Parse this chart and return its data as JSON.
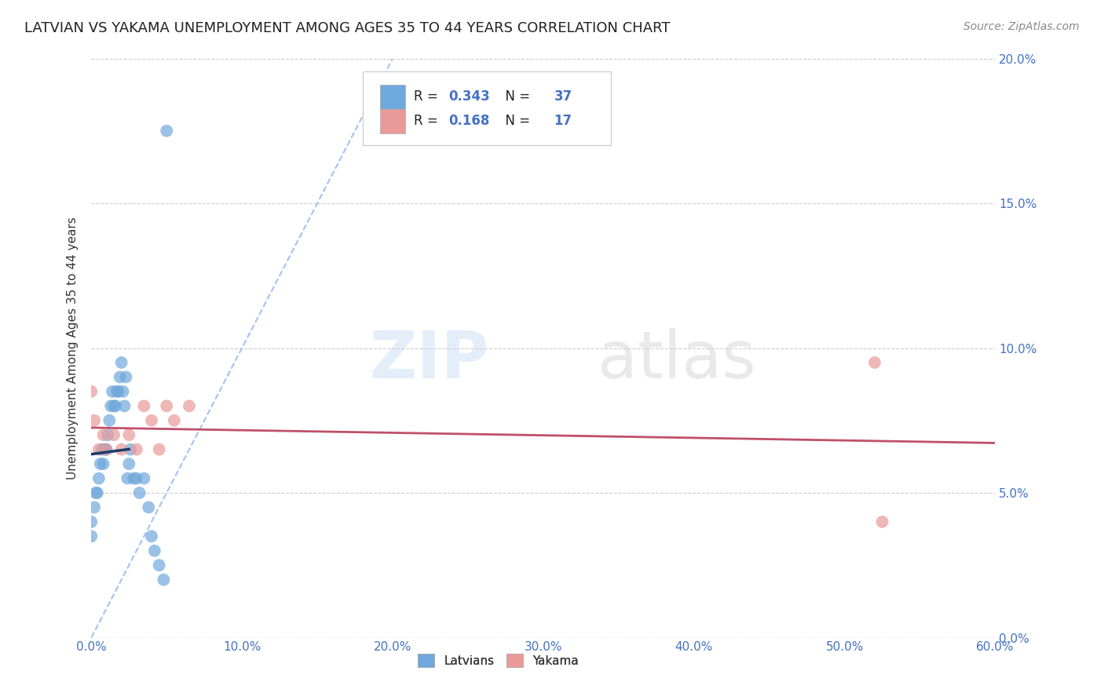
{
  "title": "LATVIAN VS YAKAMA UNEMPLOYMENT AMONG AGES 35 TO 44 YEARS CORRELATION CHART",
  "source": "Source: ZipAtlas.com",
  "ylabel": "Unemployment Among Ages 35 to 44 years",
  "xlim": [
    0.0,
    60.0
  ],
  "ylim": [
    0.0,
    20.0
  ],
  "xticks": [
    0.0,
    10.0,
    20.0,
    30.0,
    40.0,
    50.0,
    60.0
  ],
  "yticks": [
    0.0,
    5.0,
    10.0,
    15.0,
    20.0
  ],
  "latvian_R": 0.343,
  "latvian_N": 37,
  "yakama_R": 0.168,
  "yakama_N": 17,
  "latvian_color": "#6fa8dc",
  "yakama_color": "#ea9999",
  "latvian_line_color": "#1a3d6e",
  "yakama_line_color": "#c0506a",
  "diagonal_color": "#a4c2f4",
  "latvian_x": [
    0.0,
    0.0,
    0.2,
    0.3,
    0.4,
    0.5,
    0.6,
    0.7,
    0.8,
    0.9,
    1.0,
    1.1,
    1.2,
    1.3,
    1.4,
    1.5,
    1.6,
    1.7,
    1.8,
    1.9,
    2.0,
    2.1,
    2.2,
    2.3,
    2.4,
    2.5,
    2.6,
    2.8,
    3.0,
    3.2,
    3.5,
    3.8,
    4.0,
    4.2,
    4.5,
    4.8,
    5.0
  ],
  "latvian_y": [
    3.5,
    4.0,
    4.5,
    5.0,
    5.0,
    5.5,
    6.0,
    6.5,
    6.0,
    6.5,
    6.5,
    7.0,
    7.5,
    8.0,
    8.5,
    8.0,
    8.0,
    8.5,
    8.5,
    9.0,
    9.5,
    8.5,
    8.0,
    9.0,
    5.5,
    6.0,
    6.5,
    5.5,
    5.5,
    5.0,
    5.5,
    4.5,
    3.5,
    3.0,
    2.5,
    2.0,
    17.5
  ],
  "yakama_x": [
    0.0,
    0.2,
    0.5,
    0.8,
    1.0,
    1.5,
    2.0,
    2.5,
    3.0,
    3.5,
    4.0,
    4.5,
    5.0,
    5.5,
    6.5,
    52.0,
    52.5
  ],
  "yakama_y": [
    8.5,
    7.5,
    6.5,
    7.0,
    6.5,
    7.0,
    6.5,
    7.0,
    6.5,
    8.0,
    7.5,
    6.5,
    8.0,
    7.5,
    8.0,
    9.5,
    4.0
  ],
  "background_color": "#ffffff",
  "title_fontsize": 13,
  "axis_label_fontsize": 11,
  "tick_fontsize": 11,
  "source_fontsize": 10
}
